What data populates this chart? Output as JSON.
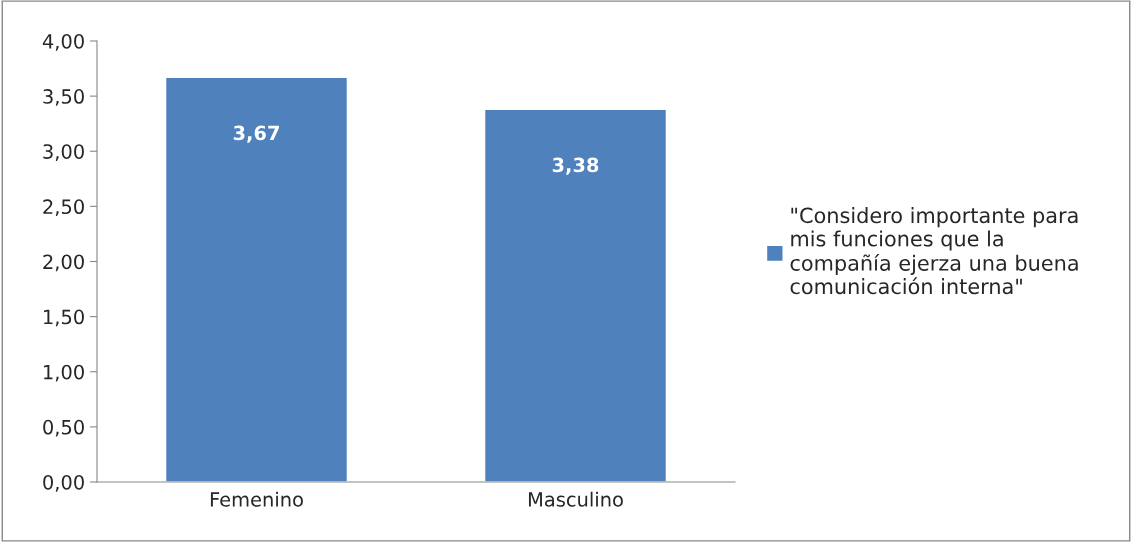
{
  "chart_data": {
    "type": "bar",
    "categories": [
      "Femenino",
      "Masculino"
    ],
    "series": [
      {
        "name": "\"Considero importante para\nmis funciones que la\ncompañía ejerza una buena\ncomunicación interna\"",
        "color": "#4f81bd",
        "values": [
          3.67,
          3.38
        ],
        "value_labels": [
          "3,67",
          "3,38"
        ]
      }
    ],
    "ylim": [
      0,
      4
    ],
    "yticks": [
      {
        "value": 0,
        "label": "0,00"
      },
      {
        "value": 0.5,
        "label": "0,50"
      },
      {
        "value": 1,
        "label": "1,00"
      },
      {
        "value": 1.5,
        "label": "1,50"
      },
      {
        "value": 2,
        "label": "2,00"
      },
      {
        "value": 2.5,
        "label": "2,50"
      },
      {
        "value": 3,
        "label": "3,00"
      },
      {
        "value": 3.5,
        "label": "3,50"
      },
      {
        "value": 4,
        "label": "4,00"
      }
    ],
    "grid": false,
    "legend": "right"
  }
}
